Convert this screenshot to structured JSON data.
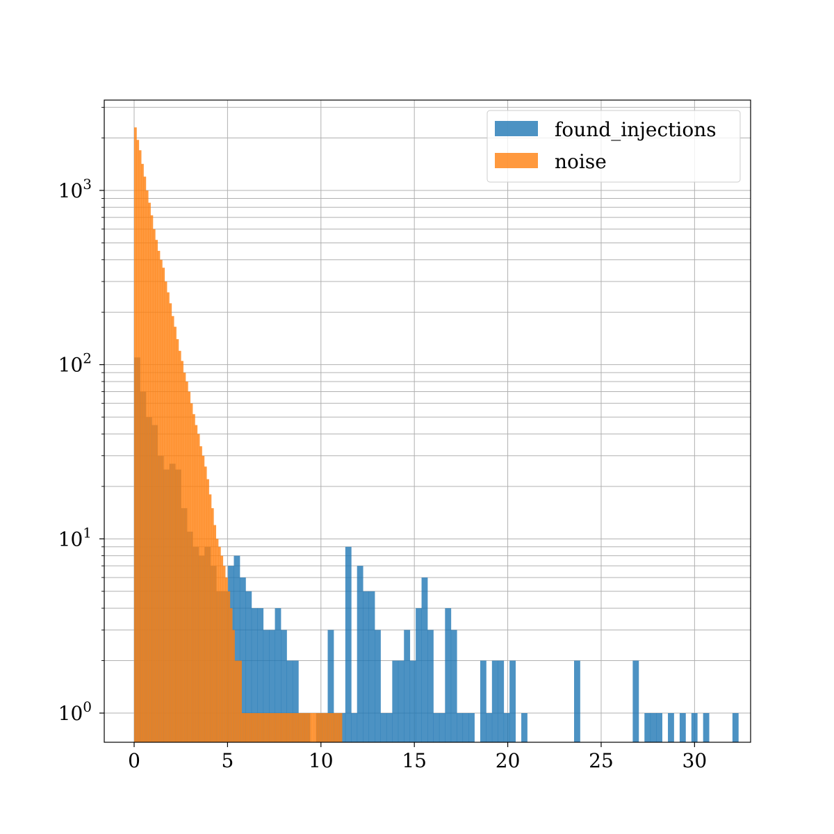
{
  "chart_data": {
    "type": "bar",
    "subtype": "overlaid-histogram",
    "title": "",
    "xlabel": "",
    "ylabel": "",
    "xlim": [
      -1.6,
      33
    ],
    "ylim": [
      0.68,
      3300
    ],
    "yscale": "log",
    "grid": true,
    "grid_includes_minor_y": true,
    "legend_position": "top-right",
    "x_ticks": [
      0,
      5,
      10,
      15,
      20,
      25,
      30
    ],
    "x_tick_labels": [
      "0",
      "5",
      "10",
      "15",
      "20",
      "25",
      "30"
    ],
    "y_ticks": [
      1,
      10,
      100,
      1000
    ],
    "y_tick_bases": [
      "10",
      "10",
      "10",
      "10"
    ],
    "y_tick_exponents": [
      "0",
      "1",
      "2",
      "3"
    ],
    "series": [
      {
        "name": "found_injections",
        "color": "#1f77b4",
        "alpha": 0.8,
        "bin_start": 0,
        "bin_width": 0.314,
        "counts": [
          110,
          70,
          50,
          45,
          30,
          25,
          27,
          25,
          15,
          11,
          9,
          8,
          9,
          7,
          5,
          5,
          7,
          8,
          6,
          5,
          4,
          4,
          3,
          3,
          4,
          3,
          2,
          2,
          1,
          1,
          0,
          1,
          1,
          3,
          1,
          1,
          9,
          1,
          7,
          5,
          5,
          3,
          1,
          1,
          2,
          2,
          3,
          2,
          4,
          6,
          3,
          1,
          1,
          4,
          3,
          1,
          1,
          1,
          0,
          2,
          1,
          2,
          2,
          1,
          2,
          0,
          1,
          0,
          0,
          0,
          0,
          0,
          0,
          0,
          0,
          2,
          0,
          0,
          0,
          0,
          0,
          0,
          0,
          0,
          0,
          2,
          0,
          1,
          1,
          1,
          0,
          1,
          0,
          1,
          0,
          1,
          0,
          1,
          0,
          0,
          0,
          0,
          1,
          0,
          0,
          0,
          0,
          0,
          0,
          0
        ]
      },
      {
        "name": "noise",
        "color": "#ff7f0e",
        "alpha": 0.8,
        "bin_start": 0,
        "bin_width": 0.125,
        "counts": [
          2300,
          1950,
          1700,
          1420,
          1200,
          1000,
          850,
          720,
          600,
          520,
          450,
          400,
          360,
          300,
          260,
          225,
          190,
          165,
          140,
          120,
          105,
          90,
          80,
          70,
          60,
          52,
          45,
          40,
          34,
          30,
          26,
          22,
          18,
          15,
          12,
          10,
          9,
          8,
          7,
          6,
          5,
          4,
          3,
          2,
          2,
          2,
          1,
          1,
          1,
          1,
          1,
          1,
          1,
          1,
          1,
          1,
          1,
          1,
          1,
          1,
          1,
          1,
          1,
          1,
          1,
          1,
          1,
          1,
          1,
          1,
          1,
          1,
          1,
          1,
          1,
          1,
          1,
          1,
          1,
          1,
          1,
          1,
          1,
          1,
          1,
          1,
          1,
          1,
          1
        ]
      }
    ]
  }
}
